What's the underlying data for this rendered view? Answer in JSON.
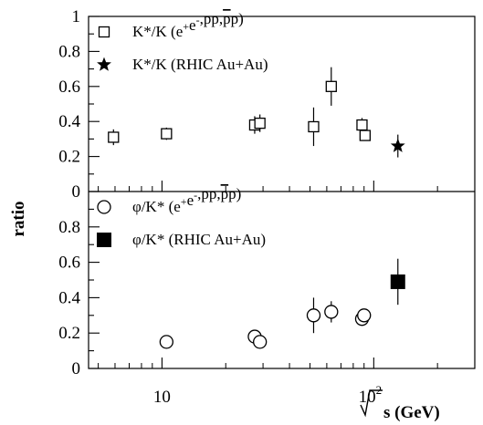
{
  "chart_data": [
    {
      "type": "scatter",
      "title": "",
      "xlabel": "√s (GeV)",
      "ylabel": "ratio",
      "xscale": "log",
      "xlim": [
        4.5,
        300
      ],
      "ylim": [
        0,
        1
      ],
      "x_tick_labels": [
        "10",
        "10²"
      ],
      "y_tick_labels": [
        "0",
        "0.2",
        "0.4",
        "0.6",
        "0.8",
        "1"
      ],
      "legend_position": "top-left",
      "series": [
        {
          "name": "K*/K (e⁺e⁻,pp,p̄p)",
          "marker": "open-square",
          "points": [
            {
              "x": 5.9,
              "y": 0.31,
              "err": 0.045
            },
            {
              "x": 10.5,
              "y": 0.33,
              "err": 0.035
            },
            {
              "x": 27.4,
              "y": 0.38,
              "err": 0.05
            },
            {
              "x": 29.0,
              "y": 0.39,
              "err": 0.05
            },
            {
              "x": 52.0,
              "y": 0.37,
              "err": 0.11
            },
            {
              "x": 63.0,
              "y": 0.6,
              "err": 0.11
            },
            {
              "x": 88.0,
              "y": 0.38,
              "err": 0.04
            },
            {
              "x": 91.0,
              "y": 0.32,
              "err": 0.03
            }
          ]
        },
        {
          "name": "K*/K (RHIC Au+Au)",
          "marker": "filled-star",
          "points": [
            {
              "x": 130.0,
              "y": 0.26,
              "err": 0.065
            }
          ]
        }
      ]
    },
    {
      "type": "scatter",
      "title": "",
      "xlabel": "√s (GeV)",
      "ylabel": "ratio",
      "xscale": "log",
      "xlim": [
        4.5,
        300
      ],
      "ylim": [
        0,
        1
      ],
      "x_tick_labels": [
        "10",
        "10²"
      ],
      "y_tick_labels": [
        "0",
        "0.2",
        "0.4",
        "0.6",
        "0.8"
      ],
      "legend_position": "top-left",
      "series": [
        {
          "name": "φ/K* (e⁺e⁻,pp,p̄p)",
          "marker": "open-circle",
          "points": [
            {
              "x": 10.5,
              "y": 0.15,
              "err": 0.0
            },
            {
              "x": 27.4,
              "y": 0.18,
              "err": 0.0
            },
            {
              "x": 29.0,
              "y": 0.15,
              "err": 0.0
            },
            {
              "x": 52.0,
              "y": 0.3,
              "err": 0.1
            },
            {
              "x": 63.0,
              "y": 0.32,
              "err": 0.06
            },
            {
              "x": 88.0,
              "y": 0.28,
              "err": 0.0
            },
            {
              "x": 90.0,
              "y": 0.3,
              "err": 0.0
            }
          ]
        },
        {
          "name": "φ/K* (RHIC Au+Au)",
          "marker": "filled-square",
          "points": [
            {
              "x": 130.0,
              "y": 0.49,
              "err": 0.13
            }
          ]
        }
      ]
    }
  ]
}
